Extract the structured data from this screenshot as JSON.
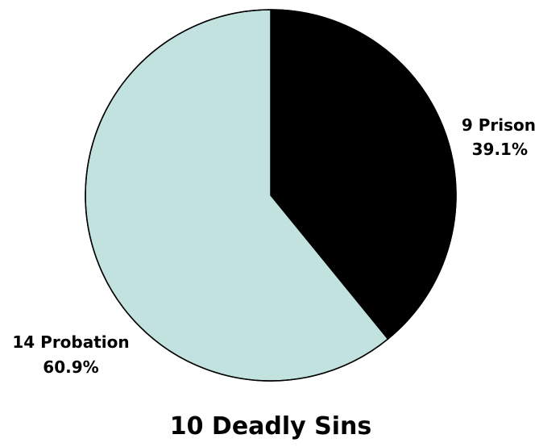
{
  "chart_data": {
    "type": "pie",
    "title": "10 Deadly Sins",
    "slices": [
      {
        "label": "Prison",
        "count": 9,
        "percent": 39.1,
        "count_label": "9 Prison",
        "percent_label": "39.1%",
        "color": "#000000"
      },
      {
        "label": "Probation",
        "count": 14,
        "percent": 60.9,
        "count_label": "14 Probation",
        "percent_label": "60.9%",
        "color": "#c2e2e0"
      }
    ],
    "start_angle": "12 o'clock",
    "direction": "clockwise",
    "slice_border_color": "#000000",
    "legend": "none"
  }
}
